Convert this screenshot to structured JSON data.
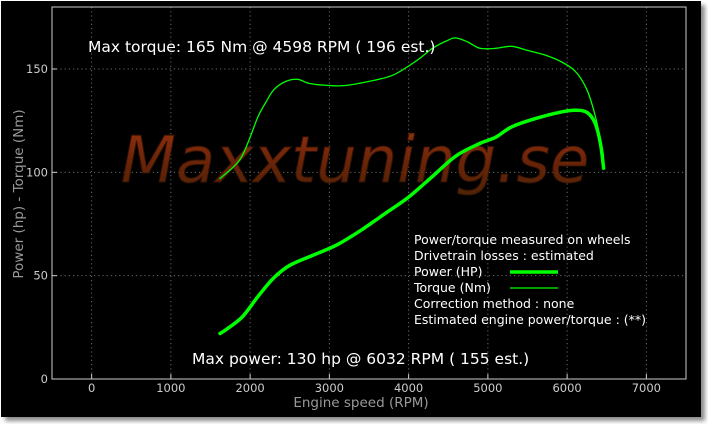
{
  "chart_data": {
    "type": "line",
    "title": "",
    "watermark": "Maxxtuning.se",
    "xlabel": "Engine speed (RPM)",
    "ylabel": "Power (hp)  - Torque (Nm)",
    "xlim": [
      -500,
      7500
    ],
    "ylim": [
      0,
      180
    ],
    "x_ticks": [
      0,
      1000,
      2000,
      3000,
      4000,
      5000,
      6000,
      7000
    ],
    "y_ticks": [
      0,
      50,
      100,
      150
    ],
    "grid": true,
    "annotations": {
      "max_torque": "Max torque:  165 Nm @  4598 RPM ( 196 est.)",
      "max_power": "Max power:   130 hp @  6032 RPM ( 155 est.)"
    },
    "legend": {
      "placement": "bottom-right",
      "lines": [
        "Power/torque measured on wheels",
        "Drivetrain losses : estimated",
        "Power (HP)",
        "Torque (Nm)",
        "Correction method : none",
        "Estimated engine power/torque : (**)"
      ]
    },
    "series": [
      {
        "name": "Power (HP)",
        "color": "#00ff00",
        "width": "thick",
        "points": [
          [
            1620,
            22
          ],
          [
            1700,
            24
          ],
          [
            1900,
            30
          ],
          [
            2100,
            40
          ],
          [
            2300,
            49
          ],
          [
            2500,
            55
          ],
          [
            2800,
            60
          ],
          [
            3100,
            65
          ],
          [
            3400,
            72
          ],
          [
            3700,
            80
          ],
          [
            4000,
            88
          ],
          [
            4300,
            98
          ],
          [
            4600,
            108
          ],
          [
            4900,
            114
          ],
          [
            5100,
            117
          ],
          [
            5300,
            122
          ],
          [
            5600,
            126
          ],
          [
            5900,
            129
          ],
          [
            6100,
            130
          ],
          [
            6250,
            129
          ],
          [
            6350,
            124
          ],
          [
            6420,
            114
          ],
          [
            6460,
            102
          ]
        ]
      },
      {
        "name": "Torque (Nm)",
        "color": "#00ff00",
        "width": "thin",
        "points": [
          [
            1620,
            97
          ],
          [
            1800,
            103
          ],
          [
            1900,
            108
          ],
          [
            2000,
            117
          ],
          [
            2100,
            127
          ],
          [
            2200,
            134
          ],
          [
            2300,
            140
          ],
          [
            2450,
            144
          ],
          [
            2600,
            145
          ],
          [
            2750,
            143
          ],
          [
            3000,
            142
          ],
          [
            3200,
            142
          ],
          [
            3500,
            144
          ],
          [
            3800,
            147
          ],
          [
            4100,
            154
          ],
          [
            4300,
            160
          ],
          [
            4500,
            164
          ],
          [
            4600,
            165
          ],
          [
            4750,
            163
          ],
          [
            4900,
            160
          ],
          [
            5100,
            160
          ],
          [
            5300,
            161
          ],
          [
            5500,
            159
          ],
          [
            5700,
            157
          ],
          [
            5900,
            154
          ],
          [
            6100,
            149
          ],
          [
            6250,
            140
          ],
          [
            6350,
            128
          ],
          [
            6420,
            116
          ],
          [
            6460,
            108
          ]
        ]
      }
    ]
  }
}
